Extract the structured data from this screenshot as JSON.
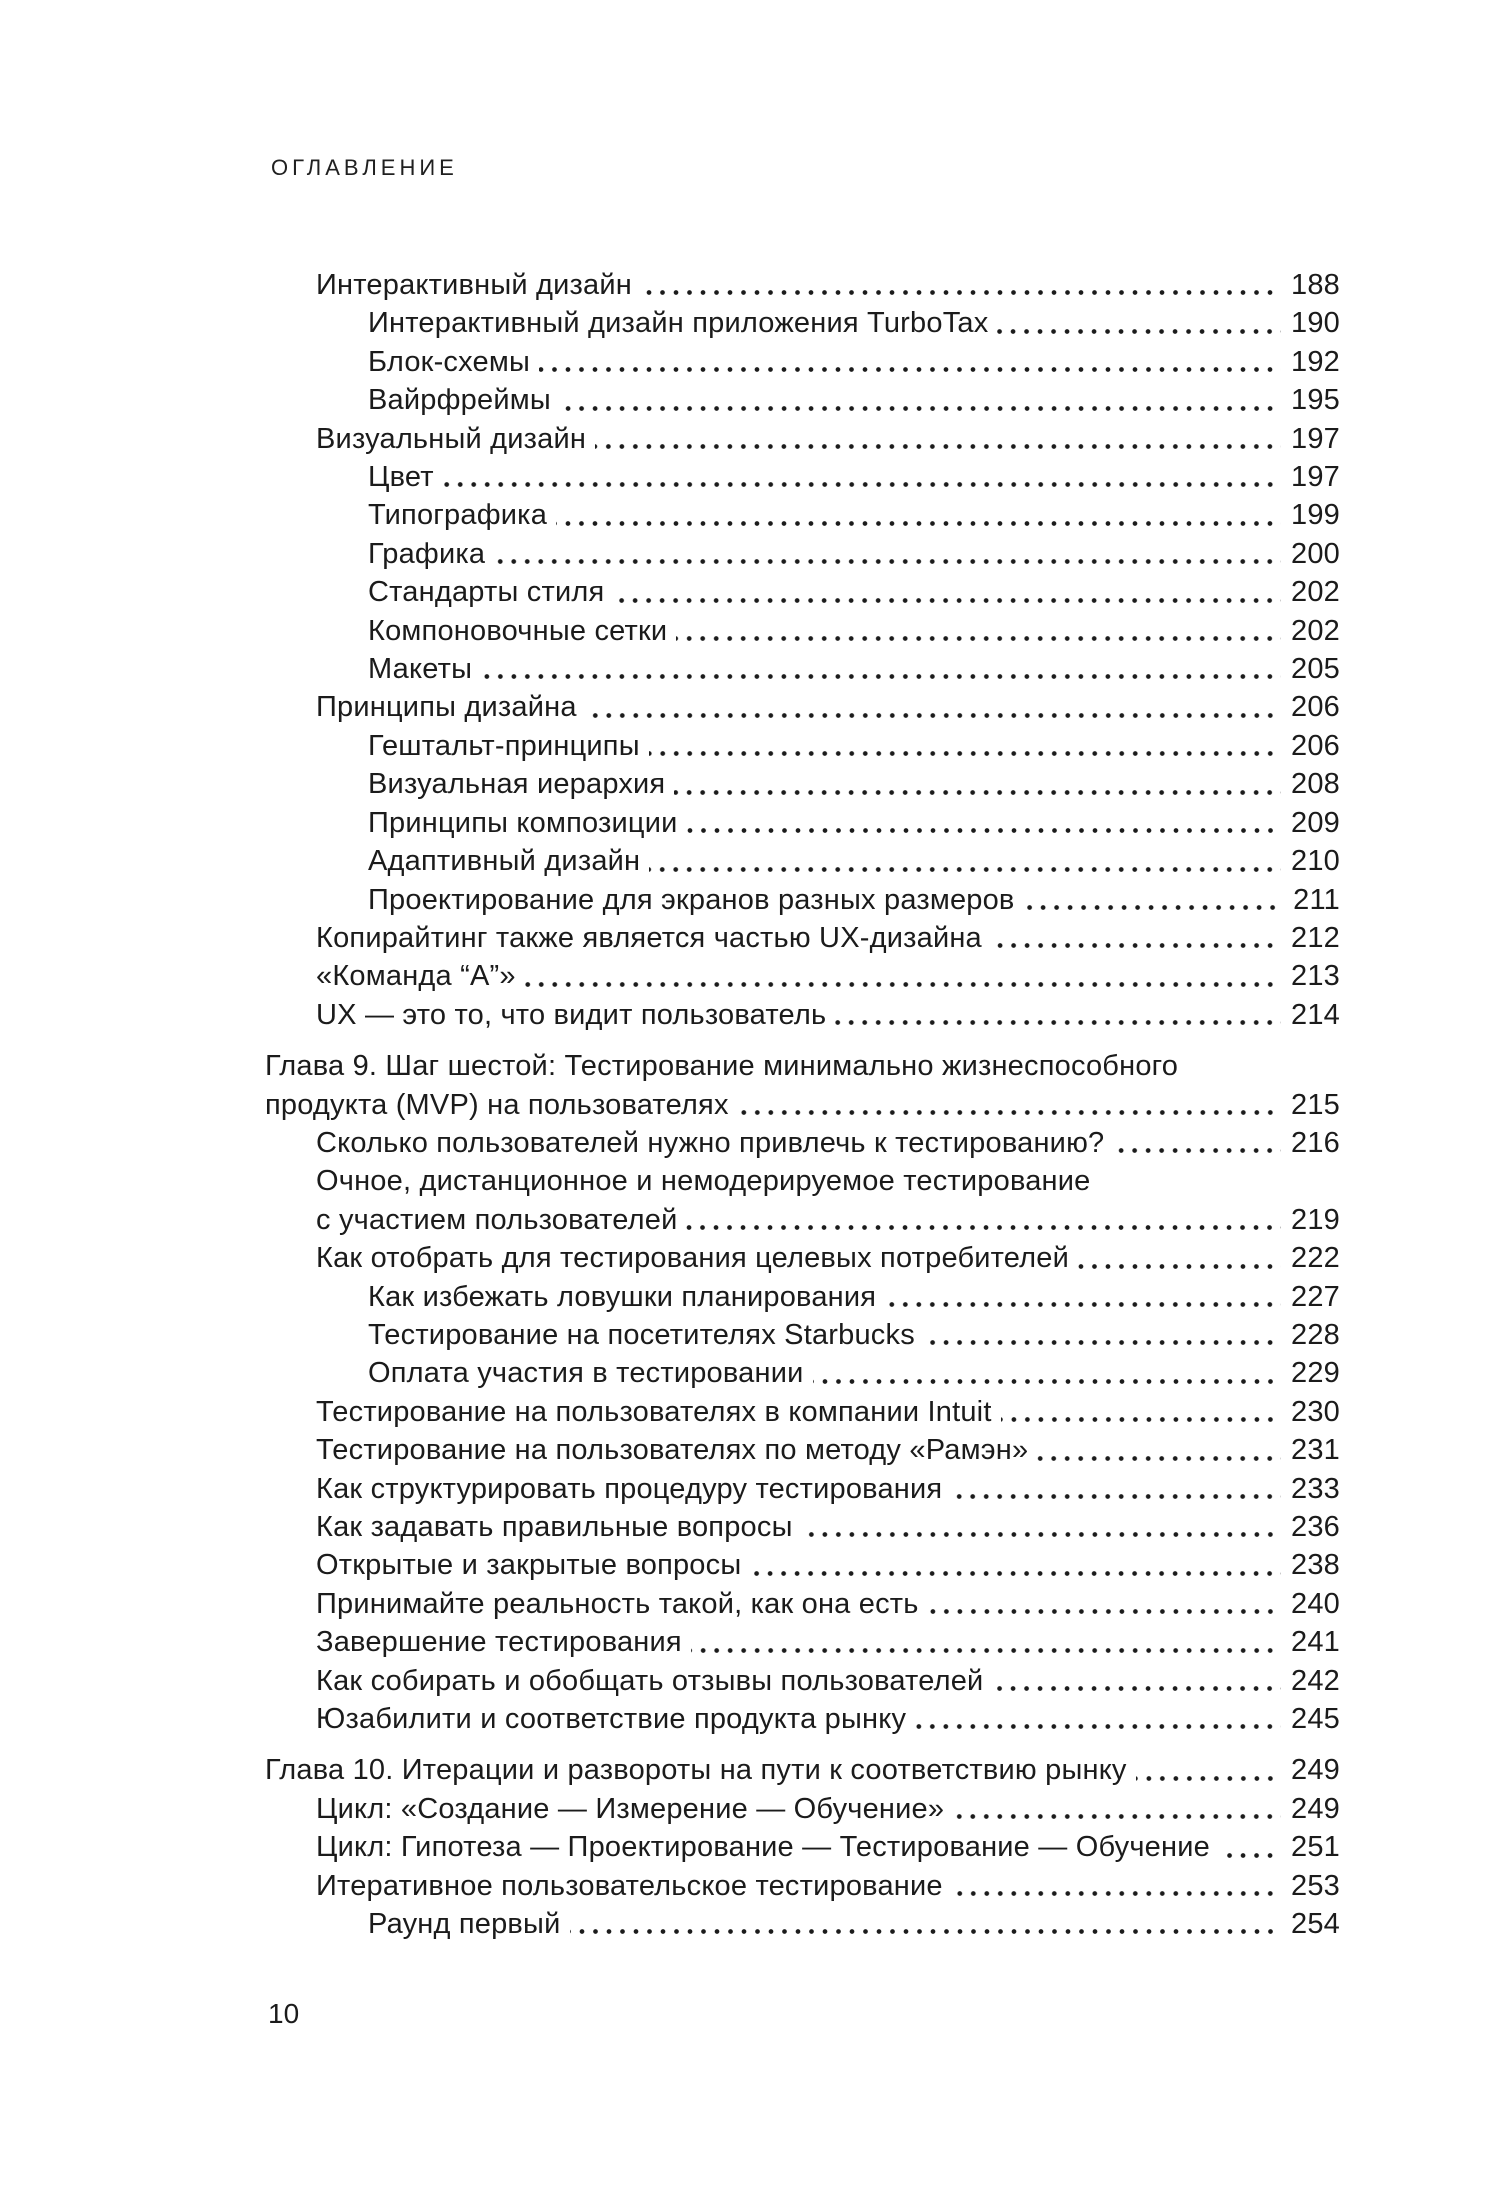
{
  "page": {
    "header": "ОГЛАВЛЕНИЕ",
    "footer_page_number": "10"
  },
  "toc": {
    "entries": [
      {
        "text": "Интерактивный дизайн",
        "page": "188",
        "indent": 1,
        "leader": true,
        "gap_before": false
      },
      {
        "text": "Интерактивный дизайн приложения TurboTax",
        "page": "190",
        "indent": 2,
        "leader": true,
        "gap_before": false
      },
      {
        "text": "Блок-схемы",
        "page": "192",
        "indent": 2,
        "leader": true,
        "gap_before": false
      },
      {
        "text": "Вайрфреймы",
        "page": "195",
        "indent": 2,
        "leader": true,
        "gap_before": false
      },
      {
        "text": "Визуальный дизайн",
        "page": "197",
        "indent": 1,
        "leader": true,
        "gap_before": false
      },
      {
        "text": "Цвет",
        "page": "197",
        "indent": 2,
        "leader": true,
        "gap_before": false
      },
      {
        "text": "Типографика",
        "page": "199",
        "indent": 2,
        "leader": true,
        "gap_before": false
      },
      {
        "text": "Графика",
        "page": "200",
        "indent": 2,
        "leader": true,
        "gap_before": false
      },
      {
        "text": "Стандарты стиля",
        "page": "202",
        "indent": 2,
        "leader": true,
        "gap_before": false
      },
      {
        "text": "Компоновочные сетки",
        "page": "202",
        "indent": 2,
        "leader": true,
        "gap_before": false
      },
      {
        "text": "Макеты",
        "page": "205",
        "indent": 2,
        "leader": true,
        "gap_before": false
      },
      {
        "text": "Принципы дизайна",
        "page": "206",
        "indent": 1,
        "leader": true,
        "gap_before": false
      },
      {
        "text": "Гештальт-принципы",
        "page": "206",
        "indent": 2,
        "leader": true,
        "gap_before": false
      },
      {
        "text": "Визуальная иерархия",
        "page": "208",
        "indent": 2,
        "leader": true,
        "gap_before": false
      },
      {
        "text": "Принципы композиции",
        "page": "209",
        "indent": 2,
        "leader": true,
        "gap_before": false
      },
      {
        "text": "Адаптивный дизайн",
        "page": "210",
        "indent": 2,
        "leader": true,
        "gap_before": false
      },
      {
        "text": "Проектирование для экранов разных размеров",
        "page": "211",
        "indent": 2,
        "leader": true,
        "gap_before": false
      },
      {
        "text": "Копирайтинг также является частью UX-дизайна",
        "page": "212",
        "indent": 1,
        "leader": true,
        "gap_before": false
      },
      {
        "text": "«Команда “А”»",
        "page": "213",
        "indent": 1,
        "leader": true,
        "gap_before": false
      },
      {
        "text": "UX — это то, что видит пользователь",
        "page": "214",
        "indent": 1,
        "leader": true,
        "gap_before": false
      },
      {
        "text": "Глава 9. Шаг шестой: Тестирование минимально жизнеспособного",
        "page": "",
        "indent": 0,
        "leader": false,
        "gap_before": true
      },
      {
        "text": "продукта (MVP) на пользователях",
        "page": "215",
        "indent": 0,
        "leader": true,
        "gap_before": false
      },
      {
        "text": "Сколько пользователей нужно привлечь к тестированию?",
        "page": "216",
        "indent": 1,
        "leader": true,
        "gap_before": false
      },
      {
        "text": "Очное, дистанционное и немодерируемое тестирование",
        "page": "",
        "indent": 1,
        "leader": false,
        "gap_before": false
      },
      {
        "text": "с участием пользователей",
        "page": "219",
        "indent": 1,
        "leader": true,
        "gap_before": false
      },
      {
        "text": "Как отобрать для тестирования целевых потребителей",
        "page": "222",
        "indent": 1,
        "leader": true,
        "gap_before": false
      },
      {
        "text": "Как избежать ловушки планирования",
        "page": "227",
        "indent": 2,
        "leader": true,
        "gap_before": false
      },
      {
        "text": "Тестирование на посетителях Starbucks",
        "page": "228",
        "indent": 2,
        "leader": true,
        "gap_before": false
      },
      {
        "text": "Оплата участия в тестировании",
        "page": "229",
        "indent": 2,
        "leader": true,
        "gap_before": false
      },
      {
        "text": "Тестирование на пользователях в компании Intuit",
        "page": "230",
        "indent": 1,
        "leader": true,
        "gap_before": false
      },
      {
        "text": "Тестирование на пользователях по методу «Рамэн»",
        "page": "231",
        "indent": 1,
        "leader": true,
        "gap_before": false
      },
      {
        "text": "Как структурировать процедуру тестирования",
        "page": "233",
        "indent": 1,
        "leader": true,
        "gap_before": false
      },
      {
        "text": "Как задавать правильные вопросы",
        "page": "236",
        "indent": 1,
        "leader": true,
        "gap_before": false
      },
      {
        "text": "Открытые и закрытые вопросы",
        "page": "238",
        "indent": 1,
        "leader": true,
        "gap_before": false
      },
      {
        "text": "Принимайте реальность такой, как она есть",
        "page": "240",
        "indent": 1,
        "leader": true,
        "gap_before": false
      },
      {
        "text": "Завершение тестирования",
        "page": "241",
        "indent": 1,
        "leader": true,
        "gap_before": false
      },
      {
        "text": "Как собирать и обобщать отзывы пользователей",
        "page": "242",
        "indent": 1,
        "leader": true,
        "gap_before": false
      },
      {
        "text": "Юзабилити и соответствие продукта рынку",
        "page": "245",
        "indent": 1,
        "leader": true,
        "gap_before": false
      },
      {
        "text": "Глава 10. Итерации и развороты на пути к соответствию рынку",
        "page": "249",
        "indent": 0,
        "leader": true,
        "gap_before": true
      },
      {
        "text": "Цикл: «Создание — Измерение — Обучение»",
        "page": "249",
        "indent": 1,
        "leader": true,
        "gap_before": false
      },
      {
        "text": "Цикл: Гипотеза — Проектирование — Тестирование — Обучение",
        "page": "251",
        "indent": 1,
        "leader": true,
        "gap_before": false
      },
      {
        "text": "Итеративное пользовательское тестирование",
        "page": "253",
        "indent": 1,
        "leader": true,
        "gap_before": false
      },
      {
        "text": "Раунд первый",
        "page": "254",
        "indent": 2,
        "leader": true,
        "gap_before": false
      }
    ]
  }
}
